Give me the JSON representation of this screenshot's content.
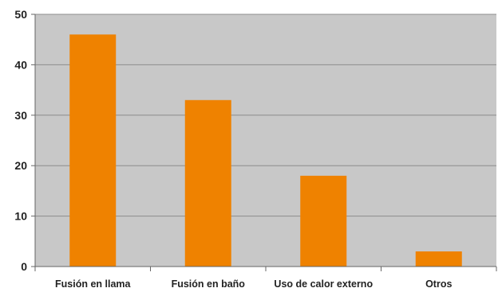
{
  "chart_data": {
    "type": "bar",
    "title": "",
    "xlabel": "",
    "ylabel": "",
    "categories": [
      "Fusión en llama",
      "Fusión en baño",
      "Uso de calor externo",
      "Otros"
    ],
    "values": [
      46,
      33,
      18,
      3
    ],
    "ylim": [
      0,
      50
    ],
    "yticks": [
      0,
      10,
      20,
      30,
      40,
      50
    ],
    "grid": true,
    "legend": "none",
    "colors": {
      "bar": "#EF8200",
      "plot_background": "#C8C8C8",
      "gridline": "#8C8C8C",
      "axis": "#666666",
      "text": "#222222"
    }
  }
}
